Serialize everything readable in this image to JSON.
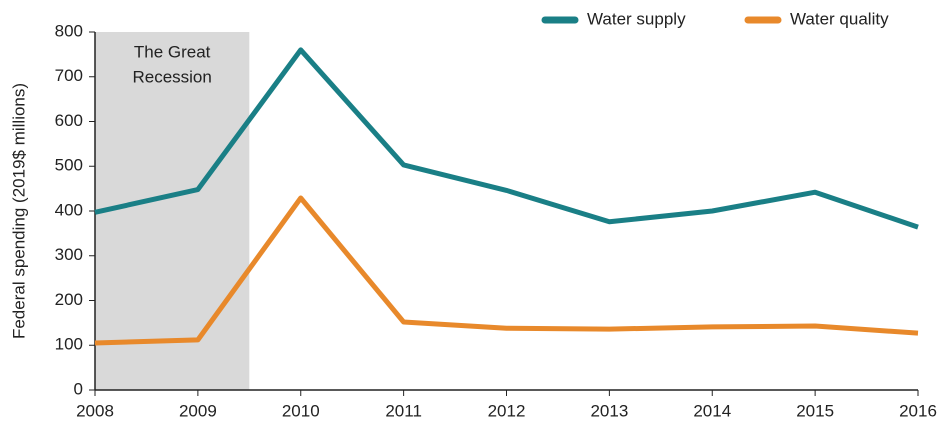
{
  "chart_data": {
    "type": "line",
    "y_axis_label": "Federal spending (2019$ millions)",
    "x": [
      2008,
      2009,
      2010,
      2011,
      2012,
      2013,
      2014,
      2015,
      2016
    ],
    "series": [
      {
        "name": "Water supply",
        "color": "#1a7f86",
        "values": [
          397,
          448,
          760,
          503,
          446,
          376,
          400,
          442,
          364
        ]
      },
      {
        "name": "Water quality",
        "color": "#e8892b",
        "values": [
          105,
          112,
          429,
          152,
          138,
          136,
          141,
          143,
          127
        ]
      }
    ],
    "xlim": [
      2008,
      2016
    ],
    "xticks": [
      2008,
      2009,
      2010,
      2011,
      2012,
      2013,
      2014,
      2015,
      2016
    ],
    "ylim": [
      0,
      800
    ],
    "yticks": [
      0,
      100,
      200,
      300,
      400,
      500,
      600,
      700,
      800
    ],
    "grid": false,
    "legend": "top-right",
    "shaded_region": {
      "x": [
        2008,
        2009.5
      ],
      "color": "#d9d9d9",
      "label_lines": [
        "The Great",
        "Recession"
      ]
    }
  }
}
